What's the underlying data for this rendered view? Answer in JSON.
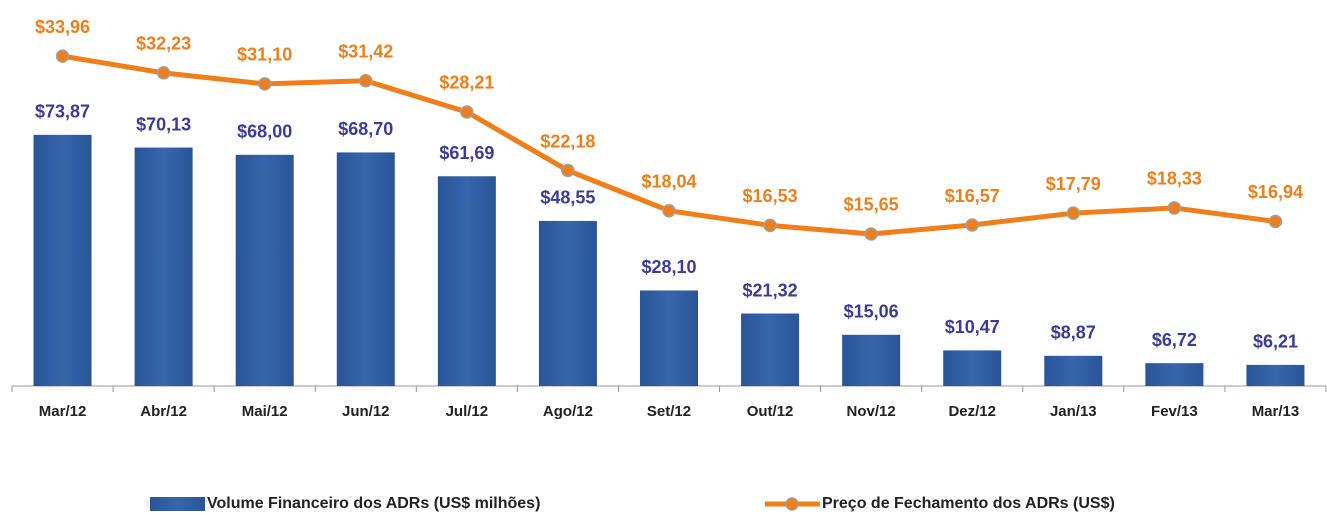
{
  "chart_data": {
    "type": "bar",
    "categories": [
      "Mar/12",
      "Abr/12",
      "Mai/12",
      "Jun/12",
      "Jul/12",
      "Ago/12",
      "Set/12",
      "Out/12",
      "Nov/12",
      "Dez/12",
      "Jan/13",
      "Fev/13",
      "Mar/13"
    ],
    "series": [
      {
        "name": "Volume Financeiro dos ADRs (US$ milhões)",
        "type": "bar",
        "axis": "y",
        "color": "#2f5fa5",
        "label_color": "#3b3b98",
        "values": [
          73.87,
          70.13,
          68.0,
          68.7,
          61.69,
          48.55,
          28.1,
          21.32,
          15.06,
          10.47,
          8.87,
          6.72,
          6.21
        ],
        "value_labels": [
          "$73,87",
          "$70,13",
          "$68,00",
          "$68,70",
          "$61,69",
          "$48,55",
          "$28,10",
          "$21,32",
          "$15,06",
          "$10,47",
          "$8,87",
          "$6,72",
          "$6,21"
        ]
      },
      {
        "name": "Preço de Fechamento dos ADRs (US$)",
        "type": "line",
        "axis": "y2",
        "color": "#f07f1a",
        "label_color": "#f07f1a",
        "values": [
          33.96,
          32.23,
          31.1,
          31.42,
          28.21,
          22.18,
          18.04,
          16.53,
          15.65,
          16.57,
          17.79,
          18.33,
          16.94
        ],
        "value_labels": [
          "$33,96",
          "$32,23",
          "$31,10",
          "$31,42",
          "$28,21",
          "$22,18",
          "$18,04",
          "$16,53",
          "$15,65",
          "$16,57",
          "$17,79",
          "$18,33",
          "$16,94"
        ]
      }
    ],
    "ylim": [
      0,
      100
    ],
    "y2lim": [
      0,
      35
    ],
    "legend": "bottom"
  }
}
